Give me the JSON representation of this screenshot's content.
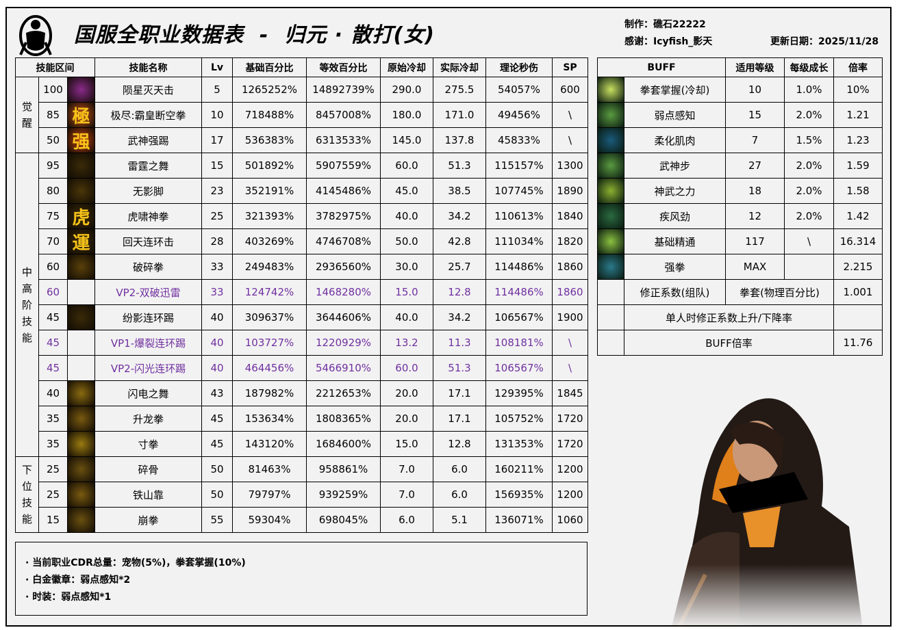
{
  "header": {
    "title": "国服全职业数据表  -  归元 · 散打(女)",
    "maker": "制作：礁石22222",
    "thanks": "感谢：Icyfish_影天",
    "updated": "更新日期：2025/11/28",
    "watermark": "礁石22222"
  },
  "skill_table": {
    "headers": [
      "技能区间",
      "技能名称",
      "Lv",
      "基础百分比",
      "等效百分比",
      "原始冷却",
      "实际冷却",
      "理论秒伤",
      "SP"
    ],
    "groups": [
      {
        "label": "觉醒",
        "rows": 3
      },
      {
        "label": "中高阶技能",
        "rows": 12
      },
      {
        "label": "下位技能",
        "rows": 3
      }
    ],
    "rows": [
      {
        "level": "100",
        "name": "陨星灭天击",
        "lv": "5",
        "base": "1265252%",
        "eq": "14892739%",
        "cd": "290.0",
        "rcd": "275.5",
        "dps": "54057%",
        "sp": "600",
        "icon": "awaken-100-icon",
        "glyph": "",
        "color": "#8a2a8a"
      },
      {
        "level": "85",
        "name": "极尽:霸皇断空拳",
        "lv": "10",
        "base": "718488%",
        "eq": "8457008%",
        "cd": "180.0",
        "rcd": "171.0",
        "dps": "49456%",
        "sp": "\\",
        "icon": "awaken-85-icon",
        "glyph": "極",
        "color": "#c0501a"
      },
      {
        "level": "50",
        "name": "武神强踢",
        "lv": "17",
        "base": "536383%",
        "eq": "6313533%",
        "cd": "145.0",
        "rcd": "137.8",
        "dps": "45833%",
        "sp": "\\",
        "icon": "awaken-50-icon",
        "glyph": "强",
        "color": "#c04010"
      },
      {
        "level": "95",
        "name": "雷霆之舞",
        "lv": "15",
        "base": "501892%",
        "eq": "5907559%",
        "cd": "60.0",
        "rcd": "51.3",
        "dps": "115157%",
        "sp": "1300",
        "icon": "thunder-dance-icon",
        "glyph": "",
        "color": "#3a2a08"
      },
      {
        "level": "80",
        "name": "无影脚",
        "lv": "23",
        "base": "352191%",
        "eq": "4145486%",
        "cd": "45.0",
        "rcd": "38.5",
        "dps": "107745%",
        "sp": "1890",
        "icon": "shadowless-kick-icon",
        "glyph": "",
        "color": "#4a3608"
      },
      {
        "level": "75",
        "name": "虎啸神拳",
        "lv": "25",
        "base": "321393%",
        "eq": "3782975%",
        "cd": "40.0",
        "rcd": "34.2",
        "dps": "110613%",
        "sp": "1840",
        "icon": "tiger-fist-icon",
        "glyph": "虎",
        "color": "#3a2a08"
      },
      {
        "level": "70",
        "name": "回天连环击",
        "lv": "28",
        "base": "403269%",
        "eq": "4746708%",
        "cd": "50.0",
        "rcd": "42.8",
        "dps": "111034%",
        "sp": "1820",
        "icon": "combo-strike-icon",
        "glyph": "運",
        "color": "#3a2a08"
      },
      {
        "level": "60",
        "name": "破碎拳",
        "lv": "33",
        "base": "249483%",
        "eq": "2936560%",
        "cd": "30.0",
        "rcd": "25.7",
        "dps": "114486%",
        "sp": "1860",
        "icon": "shatter-fist-icon",
        "glyph": "",
        "color": "#5a400a"
      },
      {
        "level": "60",
        "name": "VP2-双破迅雷",
        "lv": "33",
        "base": "124742%",
        "eq": "1468280%",
        "cd": "15.0",
        "rcd": "12.8",
        "dps": "114486%",
        "sp": "1860",
        "vp": true
      },
      {
        "level": "45",
        "name": "纷影连环踢",
        "lv": "40",
        "base": "309637%",
        "eq": "3644606%",
        "cd": "40.0",
        "rcd": "34.2",
        "dps": "106567%",
        "sp": "1900",
        "icon": "shadow-kick-icon",
        "glyph": "",
        "color": "#3a2a08"
      },
      {
        "level": "45",
        "name": "VP1-爆裂连环踢",
        "lv": "40",
        "base": "103727%",
        "eq": "1220929%",
        "cd": "13.2",
        "rcd": "11.3",
        "dps": "108181%",
        "sp": "\\",
        "vp": true
      },
      {
        "level": "45",
        "name": "VP2-闪光连环踢",
        "lv": "40",
        "base": "464456%",
        "eq": "5466910%",
        "cd": "60.0",
        "rcd": "51.3",
        "dps": "106567%",
        "sp": "\\",
        "vp": true
      },
      {
        "level": "40",
        "name": "闪电之舞",
        "lv": "43",
        "base": "187982%",
        "eq": "2212653%",
        "cd": "20.0",
        "rcd": "17.1",
        "dps": "129395%",
        "sp": "1845",
        "icon": "lightning-dance-icon",
        "glyph": "",
        "color": "#8a6a10"
      },
      {
        "level": "35",
        "name": "升龙拳",
        "lv": "45",
        "base": "153634%",
        "eq": "1808365%",
        "cd": "20.0",
        "rcd": "17.1",
        "dps": "105752%",
        "sp": "1720",
        "icon": "rising-dragon-icon",
        "glyph": "",
        "color": "#7a5a10"
      },
      {
        "level": "35",
        "name": "寸拳",
        "lv": "45",
        "base": "143120%",
        "eq": "1684600%",
        "cd": "15.0",
        "rcd": "12.8",
        "dps": "131353%",
        "sp": "1720",
        "icon": "inch-punch-icon",
        "glyph": "",
        "color": "#9a7a10"
      },
      {
        "level": "25",
        "name": "碎骨",
        "lv": "50",
        "base": "81463%",
        "eq": "958861%",
        "cd": "7.0",
        "rcd": "6.0",
        "dps": "160211%",
        "sp": "1200",
        "icon": "bone-crush-icon",
        "glyph": "",
        "color": "#6a5010"
      },
      {
        "level": "25",
        "name": "铁山靠",
        "lv": "50",
        "base": "79797%",
        "eq": "939259%",
        "cd": "7.0",
        "rcd": "6.0",
        "dps": "156935%",
        "sp": "1200",
        "icon": "iron-mountain-icon",
        "glyph": "",
        "color": "#7a5a10"
      },
      {
        "level": "15",
        "name": "崩拳",
        "lv": "55",
        "base": "59304%",
        "eq": "698045%",
        "cd": "6.0",
        "rcd": "5.1",
        "dps": "136071%",
        "sp": "1060",
        "icon": "collapse-fist-icon",
        "glyph": "",
        "color": "#6a5010"
      }
    ]
  },
  "buff_table": {
    "headers": [
      "BUFF",
      "适用等级",
      "每级成长",
      "倍率"
    ],
    "rows": [
      {
        "name": "拳套掌握(冷却)",
        "level": "10",
        "growth": "1.0%",
        "rate": "10%",
        "icon": "gauntlet-mastery-icon",
        "color": "#c8e060"
      },
      {
        "name": "弱点感知",
        "level": "15",
        "growth": "2.0%",
        "rate": "1.21",
        "icon": "weakness-sense-icon",
        "color": "#5a9a40"
      },
      {
        "name": "柔化肌肉",
        "level": "7",
        "growth": "1.5%",
        "rate": "1.23",
        "icon": "soften-muscle-icon",
        "color": "#1a5a7a"
      },
      {
        "name": "武神步",
        "level": "27",
        "growth": "2.0%",
        "rate": "1.59",
        "icon": "war-god-step-icon",
        "color": "#5a9a40"
      },
      {
        "name": "神武之力",
        "level": "18",
        "growth": "2.0%",
        "rate": "1.58",
        "icon": "divine-power-icon",
        "color": "#8ab030"
      },
      {
        "name": "疾风劲",
        "level": "12",
        "growth": "2.0%",
        "rate": "1.42",
        "icon": "gale-force-icon",
        "color": "#2a6a40"
      },
      {
        "name": "基础精通",
        "level": "117",
        "growth": "\\",
        "rate": "16.314",
        "icon": "basic-mastery-icon",
        "color": "#8ac040"
      },
      {
        "name": "强拳",
        "level": "MAX",
        "growth": "",
        "rate": "2.215",
        "icon": "strong-fist-icon",
        "color": "#2a7a8a"
      }
    ],
    "correction": {
      "label": "修正系数(组队)",
      "type": "拳套(物理百分比)",
      "value": "1.001"
    },
    "solo_label": "单人时修正系数上升/下降率",
    "solo_value": "",
    "total_label": "BUFF倍率",
    "total_value": "11.76"
  },
  "notes": [
    "· 当前职业CDR总量：宠物(5%)，拳套掌握(10%)",
    "· 白金徽章：弱点感知*2",
    "· 时装：弱点感知*1"
  ],
  "colors": {
    "vp": "#7030a0",
    "background": "#f2f2f2",
    "icon_gold": "#f5c21a"
  }
}
